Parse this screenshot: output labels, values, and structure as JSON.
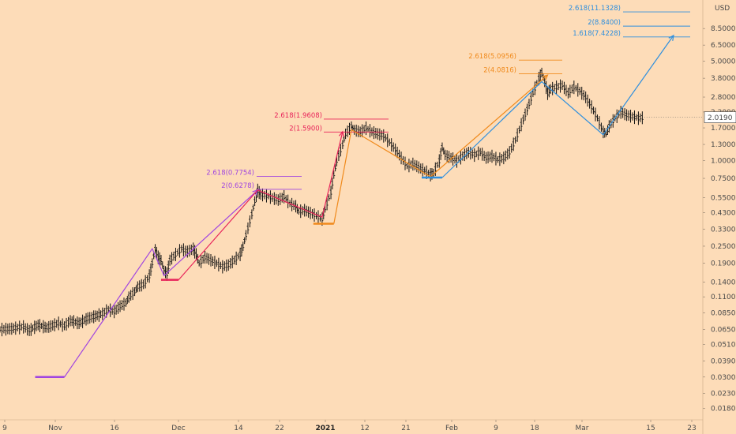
{
  "chart_data": {
    "type": "line",
    "title": "",
    "currency": "USD",
    "y_scale": "log",
    "ylim": [
      0.015,
      13.5
    ],
    "y_ticks": [
      "0.0180",
      "0.0230",
      "0.0300",
      "0.0390",
      "0.0510",
      "0.0650",
      "0.0850",
      "0.1100",
      "0.1400",
      "0.1900",
      "0.2500",
      "0.3300",
      "0.4300",
      "0.5500",
      "0.7500",
      "1.0000",
      "1.3000",
      "1.7000",
      "2.2000",
      "2.8000",
      "3.8000",
      "5.0000",
      "6.5000",
      "8.5000",
      "11.0000"
    ],
    "x_ticks": [
      "9",
      "Nov",
      "16",
      "Dec",
      "14",
      "22",
      "2021",
      "12",
      "21",
      "Feb",
      "9",
      "18",
      "Mar",
      "15",
      "23"
    ],
    "x_ticks_bold": [
      "2021"
    ],
    "last_price": {
      "label": "2.0190",
      "value": 2.019
    },
    "grid": false,
    "series": [
      {
        "points": [
          [
            0,
            0.065
          ],
          [
            4,
            0.066
          ],
          [
            8,
            0.068
          ],
          [
            10,
            0.064
          ],
          [
            13,
            0.07
          ],
          [
            16,
            0.067
          ],
          [
            20,
            0.072
          ],
          [
            22,
            0.069
          ],
          [
            24,
            0.075
          ],
          [
            27,
            0.072
          ],
          [
            30,
            0.078
          ],
          [
            32,
            0.08
          ],
          [
            35,
            0.084
          ],
          [
            37,
            0.09
          ],
          [
            39,
            0.087
          ],
          [
            41,
            0.095
          ],
          [
            43,
            0.1
          ],
          [
            44,
            0.11
          ],
          [
            46,
            0.12
          ],
          [
            47,
            0.13
          ],
          [
            49,
            0.135
          ],
          [
            51,
            0.155
          ],
          [
            52,
            0.19
          ],
          [
            53,
            0.24
          ],
          [
            54,
            0.21
          ],
          [
            55,
            0.2
          ],
          [
            56,
            0.17
          ],
          [
            57,
            0.16
          ],
          [
            58,
            0.2
          ],
          [
            60,
            0.22
          ],
          [
            62,
            0.24
          ],
          [
            64,
            0.23
          ],
          [
            66,
            0.24
          ],
          [
            67,
            0.22
          ],
          [
            68,
            0.19
          ],
          [
            70,
            0.21
          ],
          [
            72,
            0.2
          ],
          [
            74,
            0.19
          ],
          [
            76,
            0.18
          ],
          [
            78,
            0.185
          ],
          [
            80,
            0.2
          ],
          [
            82,
            0.22
          ],
          [
            83,
            0.25
          ],
          [
            84,
            0.3
          ],
          [
            86,
            0.42
          ],
          [
            87,
            0.52
          ],
          [
            88,
            0.62
          ],
          [
            89,
            0.58
          ],
          [
            91,
            0.57
          ],
          [
            93,
            0.55
          ],
          [
            95,
            0.53
          ],
          [
            97,
            0.56
          ],
          [
            99,
            0.5
          ],
          [
            101,
            0.48
          ],
          [
            102,
            0.44
          ],
          [
            104,
            0.45
          ],
          [
            106,
            0.43
          ],
          [
            108,
            0.41
          ],
          [
            110,
            0.39
          ],
          [
            111,
            0.46
          ],
          [
            113,
            0.6
          ],
          [
            114,
            0.8
          ],
          [
            115,
            1.0
          ],
          [
            117,
            1.3
          ],
          [
            118,
            1.55
          ],
          [
            120,
            1.75
          ],
          [
            121,
            1.65
          ],
          [
            123,
            1.6
          ],
          [
            125,
            1.7
          ],
          [
            127,
            1.6
          ],
          [
            129,
            1.55
          ],
          [
            131,
            1.5
          ],
          [
            133,
            1.35
          ],
          [
            135,
            1.2
          ],
          [
            137,
            1.05
          ],
          [
            139,
            0.92
          ],
          [
            141,
            0.95
          ],
          [
            143,
            0.9
          ],
          [
            145,
            0.85
          ],
          [
            147,
            0.8
          ],
          [
            148,
            0.82
          ],
          [
            150,
            1.0
          ],
          [
            151,
            1.25
          ],
          [
            152,
            1.1
          ],
          [
            154,
            1.05
          ],
          [
            156,
            1.0
          ],
          [
            158,
            1.08
          ],
          [
            160,
            1.15
          ],
          [
            162,
            1.1
          ],
          [
            164,
            1.15
          ],
          [
            166,
            1.05
          ],
          [
            168,
            1.08
          ],
          [
            170,
            1.02
          ],
          [
            172,
            1.05
          ],
          [
            174,
            1.15
          ],
          [
            176,
            1.4
          ],
          [
            178,
            1.8
          ],
          [
            180,
            2.3
          ],
          [
            182,
            3.0
          ],
          [
            184,
            3.8
          ],
          [
            185,
            4.2
          ],
          [
            186,
            3.6
          ],
          [
            187,
            3.0
          ],
          [
            188,
            3.2
          ],
          [
            190,
            3.3
          ],
          [
            192,
            3.4
          ],
          [
            194,
            3.0
          ],
          [
            196,
            3.3
          ],
          [
            198,
            3.1
          ],
          [
            200,
            2.8
          ],
          [
            202,
            2.4
          ],
          [
            204,
            2.0
          ],
          [
            206,
            1.6
          ],
          [
            207,
            1.55
          ],
          [
            208,
            1.75
          ],
          [
            210,
            2.0
          ],
          [
            212,
            2.2
          ],
          [
            214,
            2.1
          ],
          [
            216,
            2.05
          ],
          [
            218,
            2.0
          ],
          [
            220,
            2.019
          ]
        ]
      }
    ],
    "annotations": {
      "purple": {
        "zigzag": [
          [
            12,
            0.03
          ],
          [
            22,
            0.03
          ],
          [
            52,
            0.24
          ],
          [
            56,
            0.155
          ],
          [
            88,
            0.62
          ]
        ],
        "levels": [
          {
            "label": "2.618(0.7754)",
            "value": 0.7754
          },
          {
            "label": "2(0.6278)",
            "value": 0.6278
          }
        ]
      },
      "pink": {
        "zigzag": [
          [
            55,
            0.145
          ],
          [
            61,
            0.145
          ],
          [
            88,
            0.62
          ],
          [
            110,
            0.4
          ],
          [
            117,
            1.6
          ]
        ],
        "levels": [
          {
            "label": "2.618(1.9608)",
            "value": 1.9608
          },
          {
            "label": "2(1.5900)",
            "value": 1.59
          }
        ]
      },
      "orange": {
        "zigzag": [
          [
            107,
            0.36
          ],
          [
            114,
            0.36
          ],
          [
            120,
            1.65
          ],
          [
            147,
            0.77
          ],
          [
            187,
            4.0
          ]
        ],
        "levels": [
          {
            "label": "2.618(5.0956)",
            "value": 5.0956
          },
          {
            "label": "2(4.0816)",
            "value": 4.0816
          }
        ]
      },
      "blue": {
        "zigzag": [
          [
            144,
            0.76
          ],
          [
            151,
            0.76
          ],
          [
            185,
            3.6
          ],
          [
            206,
            1.52
          ],
          [
            230,
            7.6
          ]
        ],
        "levels": [
          {
            "label": "2.618(11.1328)",
            "value": 11.1328
          },
          {
            "label": "2(8.8400)",
            "value": 8.84
          },
          {
            "label": "1.618(7.4228)",
            "value": 7.4228
          }
        ]
      }
    },
    "colors": {
      "background": "#fddcb8",
      "price": "#111111",
      "purple": "#a044e0",
      "pink": "#e8245a",
      "orange": "#f08a1c",
      "blue": "#2e8fde",
      "axis_text": "#4a4a4a",
      "price_tag_bg": "#ffffff"
    }
  }
}
